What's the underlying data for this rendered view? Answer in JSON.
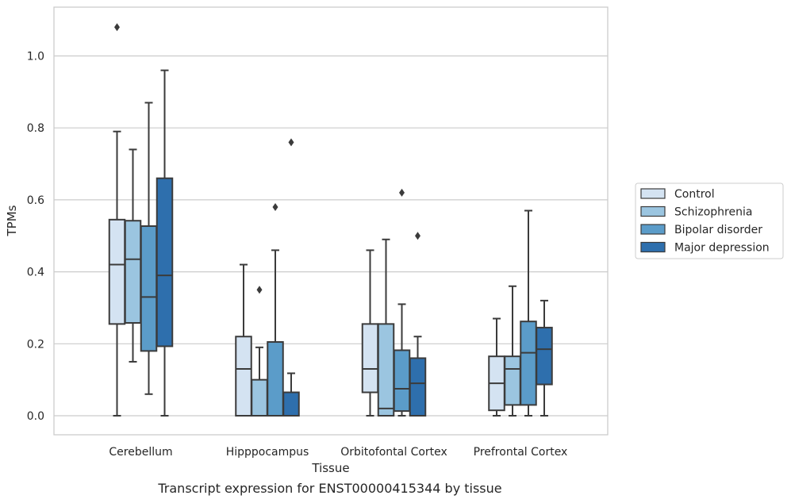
{
  "chart_data": {
    "type": "box",
    "caption": "Transcript expression for ENST00000415344 by tissue",
    "xlabel": "Tissue",
    "ylabel": "TPMs",
    "ylim": [
      -0.05,
      1.14
    ],
    "yticks": [
      0.0,
      0.2,
      0.4,
      0.6,
      0.8,
      1.0
    ],
    "ytick_labels": [
      "0.0",
      "0.2",
      "0.4",
      "0.6",
      "0.8",
      "1.0"
    ],
    "grid": "horizontal",
    "legend_position": "right",
    "categories": [
      "Cerebellum",
      "Hipppocampus",
      "Orbitofontal Cortex",
      "Prefrontal Cortex"
    ],
    "series": [
      {
        "name": "Control",
        "color": "#d4e3f2",
        "boxes": [
          {
            "whislo": 0.0,
            "q1": 0.255,
            "med": 0.42,
            "q3": 0.545,
            "whishi": 0.79,
            "fliers": [
              1.08
            ]
          },
          {
            "whislo": 0.0,
            "q1": 0.0,
            "med": 0.13,
            "q3": 0.22,
            "whishi": 0.42,
            "fliers": []
          },
          {
            "whislo": 0.0,
            "q1": 0.065,
            "med": 0.13,
            "q3": 0.255,
            "whishi": 0.46,
            "fliers": []
          },
          {
            "whislo": 0.0,
            "q1": 0.015,
            "med": 0.09,
            "q3": 0.165,
            "whishi": 0.27,
            "fliers": []
          }
        ]
      },
      {
        "name": "Schizophrenia",
        "color": "#9bc5e0",
        "boxes": [
          {
            "whislo": 0.15,
            "q1": 0.258,
            "med": 0.435,
            "q3": 0.542,
            "whishi": 0.74,
            "fliers": []
          },
          {
            "whislo": 0.0,
            "q1": 0.0,
            "med": 0.0,
            "q3": 0.1,
            "whishi": 0.19,
            "fliers": [
              0.35
            ]
          },
          {
            "whislo": 0.0,
            "q1": 0.0,
            "med": 0.02,
            "q3": 0.255,
            "whishi": 0.49,
            "fliers": []
          },
          {
            "whislo": 0.0,
            "q1": 0.03,
            "med": 0.13,
            "q3": 0.165,
            "whishi": 0.36,
            "fliers": []
          }
        ]
      },
      {
        "name": "Bipolar disorder",
        "color": "#5b9cc9",
        "boxes": [
          {
            "whislo": 0.06,
            "q1": 0.18,
            "med": 0.33,
            "q3": 0.527,
            "whishi": 0.87,
            "fliers": []
          },
          {
            "whislo": 0.0,
            "q1": 0.0,
            "med": 0.0,
            "q3": 0.205,
            "whishi": 0.46,
            "fliers": [
              0.58
            ]
          },
          {
            "whislo": 0.0,
            "q1": 0.013,
            "med": 0.075,
            "q3": 0.182,
            "whishi": 0.31,
            "fliers": [
              0.62
            ]
          },
          {
            "whislo": 0.0,
            "q1": 0.03,
            "med": 0.175,
            "q3": 0.262,
            "whishi": 0.57,
            "fliers": []
          }
        ]
      },
      {
        "name": "Major depression",
        "color": "#2e6fad",
        "boxes": [
          {
            "whislo": 0.0,
            "q1": 0.193,
            "med": 0.39,
            "q3": 0.66,
            "whishi": 0.96,
            "fliers": []
          },
          {
            "whislo": 0.0,
            "q1": 0.0,
            "med": 0.0,
            "q3": 0.065,
            "whishi": 0.118,
            "fliers": [
              0.76
            ]
          },
          {
            "whislo": 0.0,
            "q1": 0.0,
            "med": 0.09,
            "q3": 0.16,
            "whishi": 0.22,
            "fliers": [
              0.5
            ]
          },
          {
            "whislo": 0.0,
            "q1": 0.087,
            "med": 0.185,
            "q3": 0.245,
            "whishi": 0.32,
            "fliers": []
          }
        ]
      }
    ]
  }
}
